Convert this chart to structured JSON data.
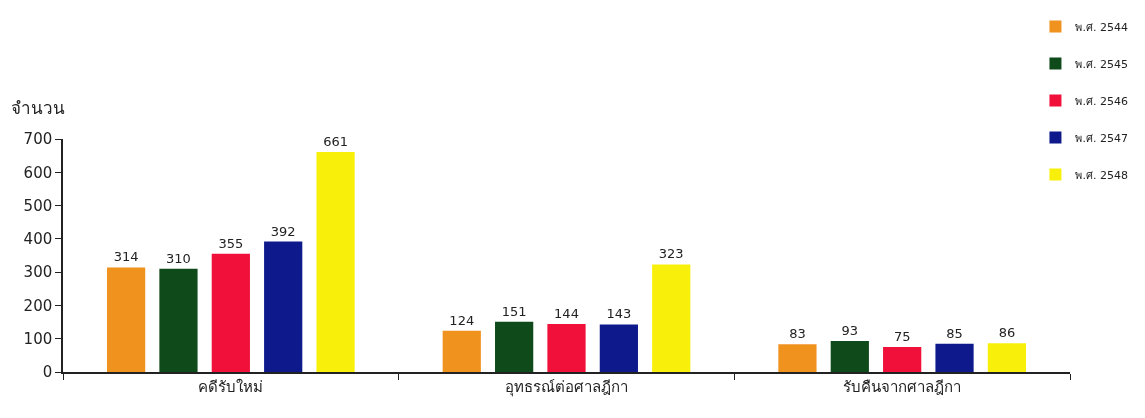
{
  "chart_data": {
    "type": "bar",
    "ylabel": "จำนวน",
    "categories": [
      "คดีรับใหม่",
      "อุทธรณ์ต่อศาลฎีกา",
      "รับคืนจากศาลฎีกา"
    ],
    "series": [
      {
        "name": "พ.ศ. 2544",
        "color": "#f0921e",
        "values": [
          314,
          124,
          83
        ]
      },
      {
        "name": "พ.ศ. 2545",
        "color": "#0f4a1a",
        "values": [
          310,
          151,
          93
        ]
      },
      {
        "name": "พ.ศ. 2546",
        "color": "#f0103a",
        "values": [
          355,
          144,
          75
        ]
      },
      {
        "name": "พ.ศ. 2547",
        "color": "#0e1a8c",
        "values": [
          392,
          143,
          85
        ]
      },
      {
        "name": "พ.ศ. 2548",
        "color": "#f8f00a",
        "values": [
          661,
          323,
          86
        ]
      }
    ],
    "ylim": [
      0,
      700
    ],
    "yticks": [
      0,
      100,
      200,
      300,
      400,
      500,
      600,
      700
    ],
    "data_labels": true,
    "legend": "top right"
  }
}
